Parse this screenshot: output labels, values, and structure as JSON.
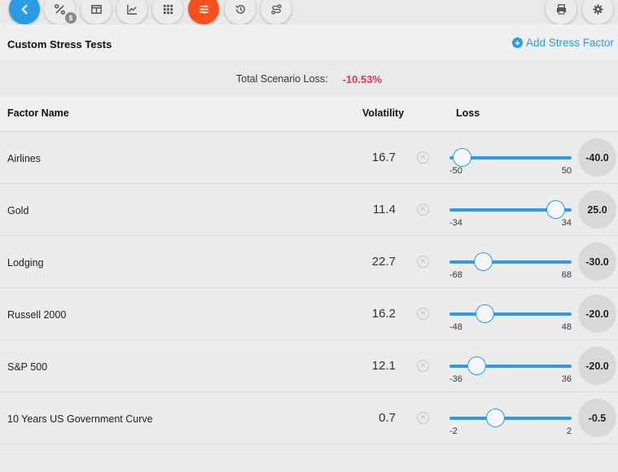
{
  "toolbar": {
    "buttons": [
      {
        "icon": "chevron-left-icon",
        "style": "blue"
      },
      {
        "icon": "percent-icon",
        "style": "default",
        "badge": "$"
      },
      {
        "icon": "columns-icon",
        "style": "default"
      },
      {
        "icon": "line-chart-icon",
        "style": "default"
      },
      {
        "icon": "grid-icon",
        "style": "default"
      },
      {
        "icon": "sliders-icon",
        "style": "orange"
      },
      {
        "icon": "history-icon",
        "style": "default"
      },
      {
        "icon": "route-icon",
        "style": "default"
      },
      {
        "icon": "print-icon",
        "style": "default"
      },
      {
        "icon": "gear-icon",
        "style": "default"
      }
    ]
  },
  "header": {
    "title": "Custom Stress Tests",
    "add_label": "Add Stress Factor"
  },
  "summary": {
    "label": "Total Scenario Loss:",
    "value": "-10.53%"
  },
  "table": {
    "columns": {
      "name": "Factor Name",
      "volatility": "Volatility",
      "loss": "Loss"
    },
    "rows": [
      {
        "name": "Airlines",
        "volatility": "16.7",
        "min": "-50",
        "max": "50",
        "loss": "-40.0",
        "value": -40
      },
      {
        "name": "Gold",
        "volatility": "11.4",
        "min": "-34",
        "max": "34",
        "loss": "25.0",
        "value": 25
      },
      {
        "name": "Lodging",
        "volatility": "22.7",
        "min": "-68",
        "max": "68",
        "loss": "-30.0",
        "value": -30
      },
      {
        "name": "Russell 2000",
        "volatility": "16.2",
        "min": "-48",
        "max": "48",
        "loss": "-20.0",
        "value": -20
      },
      {
        "name": "S&P 500",
        "volatility": "12.1",
        "min": "-36",
        "max": "36",
        "loss": "-20.0",
        "value": -20
      },
      {
        "name": "10 Years US Government Curve",
        "volatility": "0.7",
        "min": "-2",
        "max": "2",
        "loss": "-0.5",
        "value": -0.5
      }
    ]
  },
  "colors": {
    "accent": "#2b9be3",
    "active": "#f4511e",
    "negative": "#e8334a"
  }
}
